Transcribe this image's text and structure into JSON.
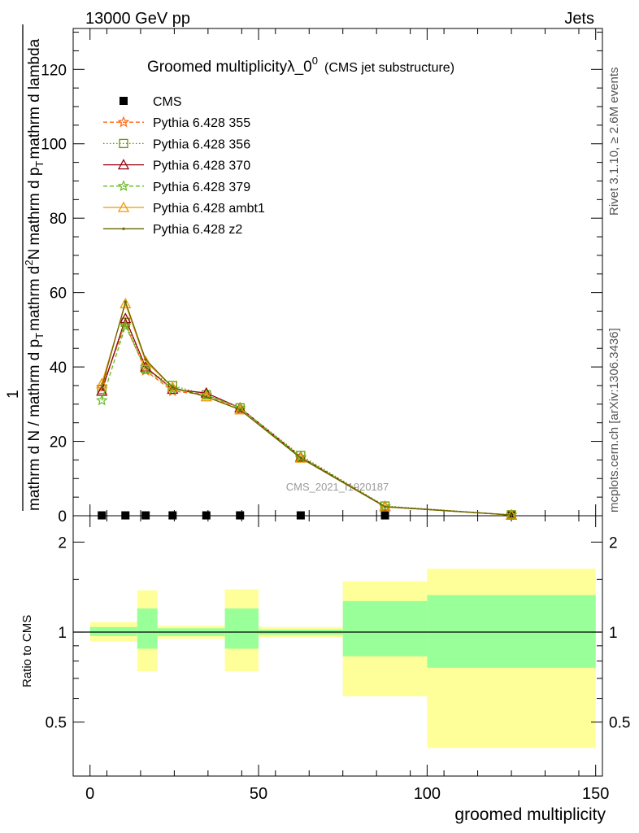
{
  "header": {
    "left_label": "13000 GeV pp",
    "right_label": "Jets"
  },
  "side_labels": {
    "rivet": "Rivet 3.1.10, ≥ 2.6M events",
    "mcplots": "mcplots.cern.ch [arXiv:1306.3436]"
  },
  "watermark": "CMS_2021_I1920187",
  "chart_data": [
    {
      "type": "line",
      "title": "Groomed multiplicityλ_0",
      "title_sup": "0",
      "title_suffix": "(CMS jet substructure)",
      "xlabel": "groomed multiplicity",
      "ylabel_parts": [
        "1",
        "mathrm d N / mathrm d p",
        "T",
        "mathrm d",
        "2",
        "N",
        "mathrm d p",
        "T",
        "mathrm d lambda"
      ],
      "xlim": [
        -5,
        152
      ],
      "ylim": [
        0,
        131
      ],
      "yticks": [
        0,
        20,
        40,
        60,
        80,
        100,
        120
      ],
      "xticks": [
        0,
        50,
        100,
        150
      ],
      "grid": false,
      "legend_position": "top-left",
      "x": [
        3.5,
        10.5,
        16.5,
        24.5,
        34.5,
        44.5,
        62.5,
        87.5,
        125
      ],
      "series": [
        {
          "name": "CMS",
          "color": "#000000",
          "marker": "square",
          "style": "none",
          "values": [
            0.1,
            0.1,
            0.1,
            0.1,
            0.1,
            0.1,
            0.1,
            0.1,
            0.05
          ]
        },
        {
          "name": "Pythia 6.428 355",
          "color": "#ff6611",
          "marker": "star",
          "style": "dashed",
          "values": [
            34.5,
            51.5,
            39.0,
            33.5,
            32.5,
            28.5,
            15.5,
            2.4,
            0.2
          ]
        },
        {
          "name": "Pythia 6.428 356",
          "color": "#669900",
          "marker": "square-open",
          "style": "dotted",
          "values": [
            34.0,
            52.0,
            39.5,
            35.0,
            32.5,
            29.0,
            16.2,
            2.6,
            0.25
          ]
        },
        {
          "name": "Pythia 6.428 370",
          "color": "#990011",
          "marker": "triangle-open",
          "style": "solid",
          "values": [
            33.5,
            53.0,
            40.0,
            34.0,
            33.0,
            29.0,
            15.8,
            2.5,
            0.2
          ]
        },
        {
          "name": "Pythia 6.428 379",
          "color": "#66bb22",
          "marker": "star",
          "style": "dashed",
          "values": [
            31.0,
            51.0,
            39.5,
            34.0,
            32.5,
            29.0,
            15.8,
            2.5,
            0.2
          ]
        },
        {
          "name": "Pythia 6.428 ambt1",
          "color": "#ee9900",
          "marker": "triangle-open",
          "style": "solid",
          "values": [
            35.5,
            57.0,
            41.5,
            34.5,
            32.0,
            28.5,
            15.5,
            2.4,
            0.2
          ]
        },
        {
          "name": "Pythia 6.428 z2",
          "color": "#666600",
          "marker": "dot",
          "style": "solid",
          "values": [
            34.5,
            57.5,
            42.0,
            34.5,
            32.0,
            28.5,
            15.5,
            2.4,
            0.2
          ]
        }
      ]
    },
    {
      "type": "area",
      "ylabel": "Ratio to CMS",
      "xlim": [
        -5,
        152
      ],
      "ylim": [
        0.33,
        2.45
      ],
      "yticks": [
        0.5,
        1,
        2
      ],
      "ytick_labels": [
        "0.5",
        "1",
        "2"
      ],
      "reference_line": 1,
      "bands": [
        {
          "x0": 0,
          "x1": 14,
          "stat": [
            0.97,
            1.04
          ],
          "total": [
            0.93,
            1.08
          ]
        },
        {
          "x0": 14,
          "x1": 20,
          "stat": [
            0.88,
            1.2
          ],
          "total": [
            0.74,
            1.38
          ]
        },
        {
          "x0": 20,
          "x1": 40,
          "stat": [
            0.97,
            1.03
          ],
          "total": [
            0.95,
            1.05
          ]
        },
        {
          "x0": 40,
          "x1": 50,
          "stat": [
            0.88,
            1.2
          ],
          "total": [
            0.74,
            1.39
          ]
        },
        {
          "x0": 50,
          "x1": 75,
          "stat": [
            0.98,
            1.02
          ],
          "total": [
            0.96,
            1.04
          ]
        },
        {
          "x0": 75,
          "x1": 100,
          "stat": [
            0.83,
            1.27
          ],
          "total": [
            0.61,
            1.48
          ]
        },
        {
          "x0": 100,
          "x1": 150,
          "stat": [
            0.76,
            1.33
          ],
          "total": [
            0.41,
            1.63
          ]
        }
      ],
      "colors": {
        "stat": "#99ff99",
        "total": "#ffff99"
      }
    }
  ]
}
